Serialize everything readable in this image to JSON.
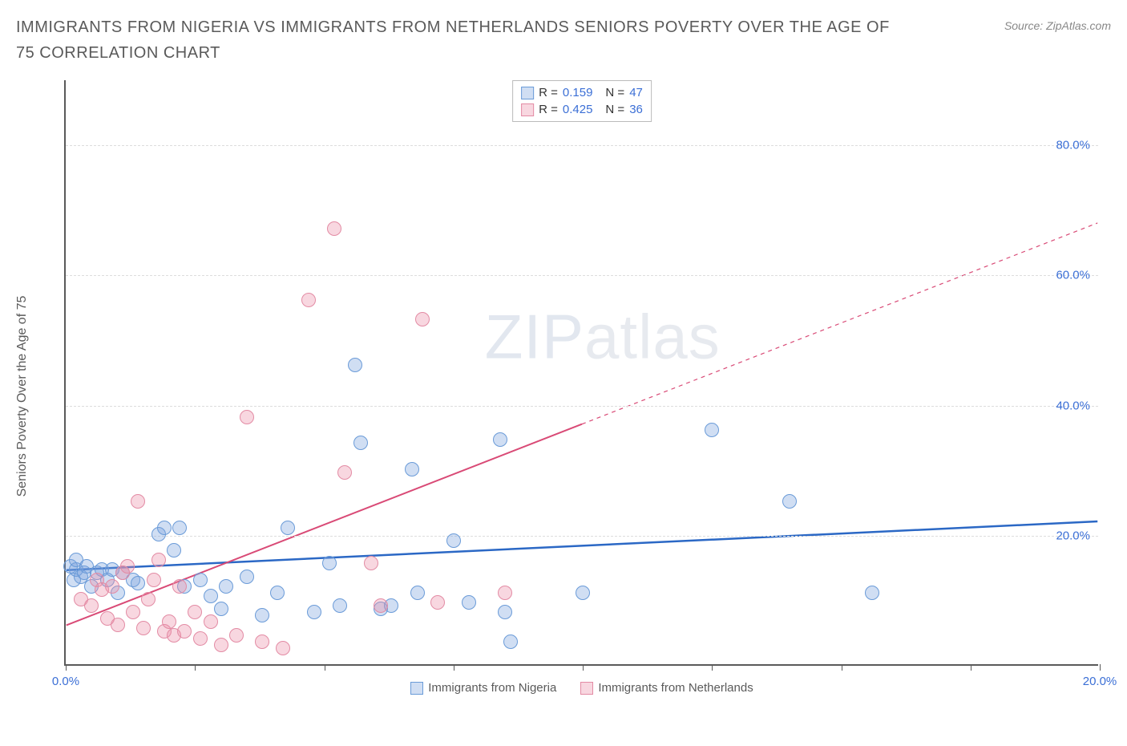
{
  "title": "IMMIGRANTS FROM NIGERIA VS IMMIGRANTS FROM NETHERLANDS SENIORS POVERTY OVER THE AGE OF 75 CORRELATION CHART",
  "source": "Source: ZipAtlas.com",
  "watermark_bold": "ZIP",
  "watermark_thin": "atlas",
  "chart": {
    "type": "scatter",
    "y_axis_label": "Seniors Poverty Over the Age of 75",
    "xlim": [
      0,
      20
    ],
    "ylim": [
      0,
      90
    ],
    "x_tick_positions": [
      0,
      2.5,
      5,
      7.5,
      10,
      12.5,
      15,
      17.5,
      20
    ],
    "x_tick_labels": {
      "0": "0.0%",
      "20": "20.0%"
    },
    "y_gridlines": [
      20,
      40,
      60,
      80
    ],
    "y_tick_labels": {
      "20": "20.0%",
      "40": "40.0%",
      "60": "60.0%",
      "80": "80.0%"
    },
    "grid_color": "#dddddd",
    "axis_color": "#5a5a5a",
    "tick_label_color": "#3b6fd6",
    "background_color": "#ffffff",
    "series": [
      {
        "name": "Immigrants from Nigeria",
        "fill": "rgba(120,160,220,0.35)",
        "stroke": "#6A9BD8",
        "trend_color": "#2B68C5",
        "trend_width": 2.5,
        "R": "0.159",
        "N": "47",
        "trend": {
          "x1": 0,
          "y1": 14.5,
          "x2": 20,
          "y2": 22,
          "solid_to_x": 20
        },
        "points": [
          [
            0.1,
            15
          ],
          [
            0.15,
            13
          ],
          [
            0.2,
            14.5
          ],
          [
            0.2,
            16
          ],
          [
            0.3,
            13.5
          ],
          [
            0.35,
            14
          ],
          [
            0.4,
            15
          ],
          [
            0.5,
            12
          ],
          [
            0.6,
            14
          ],
          [
            0.7,
            14.5
          ],
          [
            0.8,
            13
          ],
          [
            0.9,
            14.5
          ],
          [
            1.0,
            11
          ],
          [
            1.1,
            14
          ],
          [
            1.3,
            13
          ],
          [
            1.4,
            12.5
          ],
          [
            1.8,
            20
          ],
          [
            1.9,
            21
          ],
          [
            2.1,
            17.5
          ],
          [
            2.2,
            21
          ],
          [
            2.3,
            12
          ],
          [
            2.6,
            13
          ],
          [
            2.8,
            10.5
          ],
          [
            3.0,
            8.5
          ],
          [
            3.1,
            12
          ],
          [
            3.5,
            13.5
          ],
          [
            3.8,
            7.5
          ],
          [
            4.1,
            11
          ],
          [
            4.3,
            21
          ],
          [
            4.8,
            8
          ],
          [
            5.1,
            15.5
          ],
          [
            5.3,
            9
          ],
          [
            5.6,
            46
          ],
          [
            5.7,
            34
          ],
          [
            6.1,
            8.5
          ],
          [
            6.3,
            9
          ],
          [
            6.7,
            30
          ],
          [
            6.8,
            11
          ],
          [
            7.5,
            19
          ],
          [
            7.8,
            9.5
          ],
          [
            8.4,
            34.5
          ],
          [
            8.5,
            8
          ],
          [
            8.6,
            3.5
          ],
          [
            10.0,
            11
          ],
          [
            12.5,
            36
          ],
          [
            14.0,
            25
          ],
          [
            15.6,
            11
          ]
        ]
      },
      {
        "name": "Immigrants from Netherlands",
        "fill": "rgba(235,140,165,0.35)",
        "stroke": "#E38BA4",
        "trend_color": "#D94A76",
        "trend_width": 2,
        "R": "0.425",
        "N": "36",
        "trend": {
          "x1": 0,
          "y1": 6,
          "x2": 20,
          "y2": 68,
          "solid_to_x": 10
        },
        "points": [
          [
            0.3,
            10
          ],
          [
            0.5,
            9
          ],
          [
            0.6,
            13
          ],
          [
            0.7,
            11.5
          ],
          [
            0.8,
            7
          ],
          [
            0.9,
            12
          ],
          [
            1.0,
            6
          ],
          [
            1.1,
            14
          ],
          [
            1.2,
            15
          ],
          [
            1.3,
            8
          ],
          [
            1.4,
            25
          ],
          [
            1.5,
            5.5
          ],
          [
            1.6,
            10
          ],
          [
            1.7,
            13
          ],
          [
            1.8,
            16
          ],
          [
            1.9,
            5
          ],
          [
            2.0,
            6.5
          ],
          [
            2.1,
            4.5
          ],
          [
            2.2,
            12
          ],
          [
            2.3,
            5
          ],
          [
            2.5,
            8
          ],
          [
            2.6,
            4
          ],
          [
            2.8,
            6.5
          ],
          [
            3.0,
            3
          ],
          [
            3.3,
            4.5
          ],
          [
            3.5,
            38
          ],
          [
            3.8,
            3.5
          ],
          [
            4.2,
            2.5
          ],
          [
            4.7,
            56
          ],
          [
            5.2,
            67
          ],
          [
            5.4,
            29.5
          ],
          [
            5.9,
            15.5
          ],
          [
            6.1,
            9
          ],
          [
            6.9,
            53
          ],
          [
            7.2,
            9.5
          ],
          [
            8.5,
            11
          ]
        ]
      }
    ],
    "point_radius": 9,
    "point_stroke_width": 1.5,
    "legend_swatch_size": 16
  }
}
